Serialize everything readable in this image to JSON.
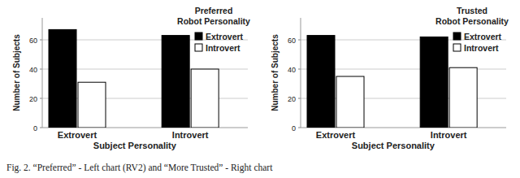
{
  "chart_data": [
    {
      "type": "bar",
      "title": "Preferred",
      "subtitle": "Robot Personality",
      "x_label": "Subject Personality",
      "y_label": "Number of Subjects",
      "categories": [
        "Extrovert",
        "Introvert"
      ],
      "series": [
        {
          "name": "Extrovert",
          "color": "#000000",
          "values": [
            67,
            63
          ]
        },
        {
          "name": "Introvert",
          "color": "#ffffff",
          "values": [
            31,
            40
          ]
        }
      ],
      "ylim": [
        0,
        75
      ],
      "yticks": [
        0,
        20,
        40,
        60
      ],
      "grid": true,
      "legend": "upper right"
    },
    {
      "type": "bar",
      "title": "Trusted",
      "subtitle": "Robot Personality",
      "x_label": "Subject Personality",
      "y_label": "Number of Subjects",
      "categories": [
        "Extrovert",
        "Introvert"
      ],
      "series": [
        {
          "name": "Extrovert",
          "color": "#000000",
          "values": [
            63,
            62
          ]
        },
        {
          "name": "Introvert",
          "color": "#ffffff",
          "values": [
            35,
            41
          ]
        }
      ],
      "ylim": [
        0,
        75
      ],
      "yticks": [
        0,
        20,
        40,
        60
      ],
      "grid": true,
      "legend": "upper right"
    }
  ],
  "caption": "Fig. 2.   “Preferred” - Left chart (RV2) and “More Trusted” - Right chart"
}
